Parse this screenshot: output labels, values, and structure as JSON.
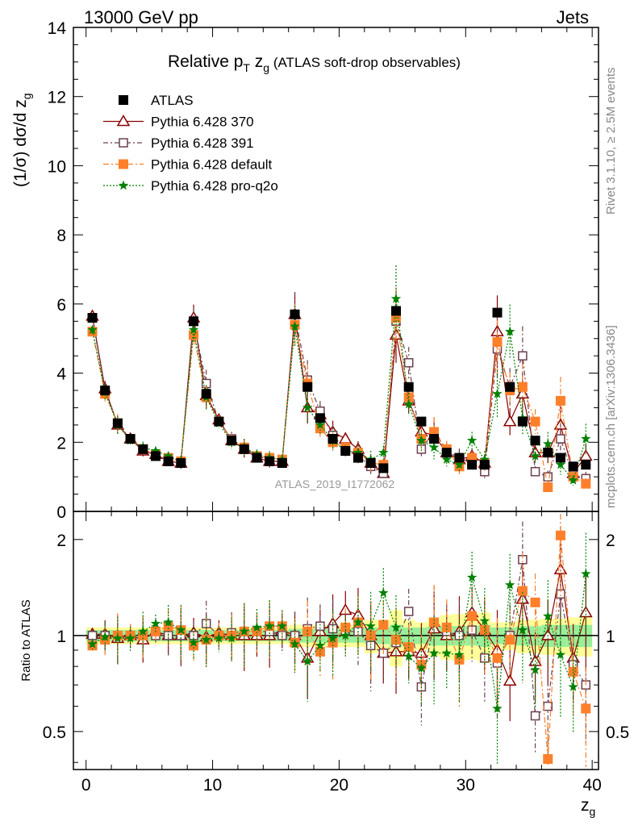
{
  "header": {
    "left": "13000 GeV pp",
    "right": "Jets"
  },
  "side_labels": {
    "rivet": "Rivet 3.1.10, ≥ 2.5M events",
    "mcplots": "mcplots.cern.ch [arXiv:1306.3436]"
  },
  "analysis_id": "ATLAS_2019_I1772062",
  "chart_data": [
    {
      "type": "scatter",
      "panel": "main",
      "title": {
        "main": "Relative p",
        "sub1": "T",
        "mid": " z",
        "sub2": "g",
        "note": " (ATLAS soft-drop observables)"
      },
      "ylabel": {
        "a": "(1/σ) dσ/d z",
        "sub": "g"
      },
      "ylim": [
        0,
        14
      ],
      "yticks": [
        "0",
        "2",
        "4",
        "6",
        "8",
        "10",
        "12",
        "14"
      ],
      "xlim": [
        -1,
        40.5
      ],
      "x": [
        0.5,
        1.5,
        2.5,
        3.5,
        4.5,
        5.5,
        6.5,
        7.5,
        8.5,
        9.5,
        10.5,
        11.5,
        12.5,
        13.5,
        14.5,
        15.5,
        16.5,
        17.5,
        18.5,
        19.5,
        20.5,
        21.5,
        22.5,
        23.5,
        24.5,
        25.5,
        26.5,
        27.5,
        28.5,
        29.5,
        30.5,
        31.5,
        32.5,
        33.5,
        34.5,
        35.5,
        36.5,
        37.5,
        38.5,
        39.5
      ],
      "series": [
        {
          "name": "ATLAS",
          "color": "#000000",
          "marker": "filled-square",
          "values": [
            5.6,
            3.5,
            2.55,
            2.1,
            1.8,
            1.6,
            1.45,
            1.4,
            5.5,
            3.4,
            2.6,
            2.05,
            1.8,
            1.55,
            1.45,
            1.4,
            5.7,
            3.6,
            2.7,
            2.1,
            1.75,
            1.55,
            1.4,
            1.25,
            5.8,
            3.6,
            2.6,
            2.1,
            1.7,
            1.55,
            1.35,
            1.35,
            5.75,
            3.6,
            2.6,
            2.05,
            1.7,
            1.55,
            1.3,
            1.35
          ]
        },
        {
          "name": "Pythia 6.428 370",
          "color": "#8b0000",
          "marker": "open-triangle",
          "values": [
            5.65,
            3.55,
            2.5,
            2.1,
            1.75,
            1.65,
            1.45,
            1.4,
            5.6,
            3.35,
            2.65,
            2.05,
            1.8,
            1.55,
            1.45,
            1.45,
            5.7,
            3.0,
            2.8,
            2.3,
            2.1,
            1.8,
            1.4,
            1.1,
            5.1,
            3.2,
            2.3,
            2.2,
            1.7,
            1.5,
            1.6,
            1.4,
            5.2,
            2.6,
            3.4,
            1.7,
            1.7,
            2.5,
            1.1,
            1.6
          ]
        },
        {
          "name": "Pythia 6.428 391",
          "color": "#6b4050",
          "marker": "open-square",
          "values": [
            5.6,
            3.5,
            2.55,
            2.1,
            1.8,
            1.6,
            1.45,
            1.4,
            5.5,
            3.7,
            2.6,
            2.1,
            1.85,
            1.6,
            1.5,
            1.4,
            5.7,
            3.8,
            2.9,
            2.2,
            1.8,
            1.6,
            1.3,
            1.1,
            5.5,
            4.3,
            1.8,
            2.3,
            1.75,
            1.55,
            1.4,
            1.15,
            4.7,
            3.6,
            4.5,
            1.15,
            1.0,
            2.1,
            1.05,
            0.95
          ]
        },
        {
          "name": "Pythia 6.428 default",
          "color": "#ff7f2a",
          "marker": "filled-square",
          "values": [
            5.2,
            3.4,
            2.55,
            2.1,
            1.8,
            1.65,
            1.55,
            1.45,
            5.1,
            3.3,
            2.6,
            2.05,
            1.85,
            1.6,
            1.55,
            1.5,
            5.4,
            3.7,
            2.4,
            2.0,
            1.85,
            1.7,
            1.4,
            1.35,
            5.6,
            3.3,
            2.1,
            2.3,
            1.8,
            1.3,
            1.55,
            1.4,
            4.9,
            3.5,
            3.6,
            2.6,
            0.7,
            3.2,
            1.0,
            0.8
          ]
        },
        {
          "name": "Pythia 6.428 pro-q2o",
          "color": "#008000",
          "marker": "star",
          "values": [
            5.25,
            3.45,
            2.5,
            2.05,
            1.85,
            1.75,
            1.6,
            1.45,
            5.25,
            3.3,
            2.55,
            2.0,
            1.85,
            1.65,
            1.55,
            1.5,
            5.35,
            3.0,
            2.5,
            2.05,
            1.75,
            1.7,
            1.5,
            1.7,
            6.15,
            3.1,
            2.05,
            1.85,
            1.5,
            1.35,
            2.05,
            1.5,
            3.4,
            5.2,
            2.7,
            1.6,
            1.95,
            1.35,
            0.9,
            2.1
          ]
        }
      ]
    },
    {
      "type": "scatter",
      "panel": "ratio",
      "ylabel": "Ratio to ATLAS",
      "ylim": [
        0.38,
        2.45
      ],
      "yticks": [
        "0.5",
        "1",
        "2"
      ],
      "xlabel": {
        "a": "z",
        "sub": "g"
      },
      "xticks": [
        "0",
        "10",
        "20",
        "30",
        "40"
      ],
      "reference_line": 1,
      "band_inner_halfwidth": [
        0.04,
        0.04,
        0.04,
        0.04,
        0.04,
        0.04,
        0.04,
        0.04,
        0.04,
        0.04,
        0.04,
        0.04,
        0.04,
        0.04,
        0.04,
        0.04,
        0.05,
        0.05,
        0.05,
        0.05,
        0.05,
        0.05,
        0.06,
        0.06,
        0.08,
        0.06,
        0.06,
        0.07,
        0.07,
        0.07,
        0.07,
        0.08,
        0.06,
        0.06,
        0.07,
        0.07,
        0.08,
        0.08,
        0.08,
        0.08
      ],
      "band_outer_halfwidth": [
        0.06,
        0.06,
        0.06,
        0.06,
        0.06,
        0.06,
        0.06,
        0.06,
        0.06,
        0.06,
        0.06,
        0.06,
        0.06,
        0.06,
        0.06,
        0.06,
        0.08,
        0.08,
        0.08,
        0.08,
        0.08,
        0.08,
        0.12,
        0.12,
        0.2,
        0.12,
        0.1,
        0.14,
        0.16,
        0.17,
        0.16,
        0.18,
        0.1,
        0.1,
        0.12,
        0.12,
        0.13,
        0.13,
        0.14,
        0.14
      ],
      "series": [
        {
          "name": "Pythia 6.428 370",
          "values": [
            1.01,
            1.01,
            0.98,
            1.0,
            0.97,
            1.03,
            1.0,
            1.0,
            1.02,
            0.99,
            1.02,
            1.0,
            1.0,
            1.0,
            1.0,
            1.04,
            1.0,
            0.85,
            1.03,
            1.09,
            1.2,
            1.16,
            1.0,
            0.88,
            0.89,
            0.89,
            0.88,
            1.05,
            1.0,
            1.03,
            1.18,
            1.04,
            0.9,
            0.72,
            1.3,
            0.83,
            1.0,
            1.61,
            0.85,
            1.18
          ]
        },
        {
          "name": "Pythia 6.428 391",
          "values": [
            1.0,
            1.0,
            1.0,
            1.0,
            1.0,
            1.0,
            1.0,
            1.0,
            1.0,
            1.09,
            1.0,
            1.02,
            1.03,
            1.03,
            1.03,
            1.0,
            1.0,
            1.05,
            1.07,
            1.05,
            1.03,
            1.03,
            0.93,
            0.88,
            0.95,
            1.19,
            0.69,
            1.1,
            1.03,
            1.0,
            1.04,
            0.85,
            0.82,
            1.0,
            1.73,
            0.56,
            0.6,
            1.35,
            0.81,
            0.7
          ]
        },
        {
          "name": "Pythia 6.428 default",
          "values": [
            0.93,
            0.97,
            1.0,
            1.0,
            1.0,
            1.03,
            1.07,
            1.04,
            0.93,
            0.97,
            1.0,
            1.0,
            1.03,
            1.03,
            1.07,
            1.07,
            0.95,
            1.03,
            0.89,
            0.95,
            1.06,
            1.1,
            1.0,
            1.08,
            0.97,
            0.92,
            0.81,
            1.1,
            1.06,
            0.84,
            1.15,
            1.04,
            0.85,
            0.97,
            1.38,
            1.27,
            0.41,
            2.06,
            0.77,
            0.59
          ]
        },
        {
          "name": "Pythia 6.428 pro-q2o",
          "values": [
            0.94,
            0.99,
            0.98,
            0.98,
            1.03,
            1.09,
            1.1,
            1.04,
            0.95,
            0.97,
            0.98,
            0.98,
            1.03,
            1.06,
            1.07,
            1.07,
            0.94,
            0.83,
            0.93,
            0.98,
            1.0,
            1.1,
            1.07,
            1.36,
            1.06,
            0.86,
            0.79,
            0.88,
            0.88,
            0.87,
            1.52,
            1.11,
            0.59,
            1.44,
            1.04,
            0.78,
            1.15,
            0.87,
            0.69,
            1.56
          ]
        }
      ]
    }
  ]
}
